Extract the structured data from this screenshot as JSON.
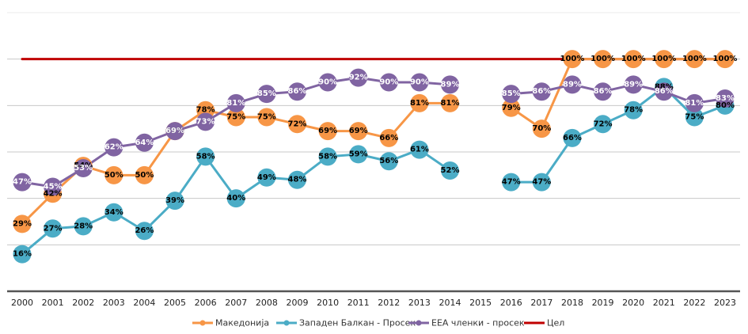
{
  "chart_data": {
    "type": "line",
    "title": "",
    "xlabel": "",
    "ylabel": "",
    "ylim": [
      0,
      120
    ],
    "grid": true,
    "gridlines_y": [
      20,
      40,
      60,
      80,
      100,
      120
    ],
    "y_tick_labels_visible": false,
    "legend_position": "bottom",
    "categories": [
      "2000",
      "2001",
      "2002",
      "2003",
      "2004",
      "2005",
      "2006",
      "2007",
      "2008",
      "2009",
      "2010",
      "2011",
      "2012",
      "2013",
      "2014",
      "2015",
      "2016",
      "2017",
      "2018",
      "2019",
      "2020",
      "2021",
      "2022",
      "2023"
    ],
    "series": [
      {
        "name": "Македонија",
        "color": "#F79646",
        "label_color": "#000000",
        "marker": "circle",
        "values": [
          29,
          42,
          54,
          50,
          50,
          69,
          78,
          75,
          75,
          72,
          69,
          69,
          66,
          81,
          81,
          null,
          79,
          70,
          100,
          100,
          100,
          100,
          100,
          100
        ]
      },
      {
        "name": "Западен Балкан - Просек",
        "color": "#4BACC6",
        "label_color": "#000000",
        "marker": "circle",
        "values": [
          16,
          27,
          28,
          34,
          26,
          39,
          58,
          40,
          49,
          48,
          58,
          59,
          56,
          61,
          52,
          null,
          47,
          47,
          66,
          72,
          78,
          88,
          75,
          80
        ]
      },
      {
        "name": "ЕЕА членки - просек",
        "color": "#8064A2",
        "label_color": "#FFFFFF",
        "marker": "circle",
        "values": [
          47,
          45,
          53,
          62,
          64,
          69,
          73,
          81,
          85,
          86,
          90,
          92,
          90,
          90,
          89,
          null,
          85,
          86,
          89,
          86,
          89,
          86,
          81,
          83
        ]
      },
      {
        "name": "Цел",
        "color": "#C00000",
        "marker": "none",
        "values": [
          100,
          100,
          100,
          100,
          100,
          100,
          100,
          100,
          100,
          100,
          100,
          100,
          100,
          100,
          100,
          100,
          100,
          100,
          100,
          100,
          100,
          100,
          100,
          100
        ]
      }
    ]
  }
}
